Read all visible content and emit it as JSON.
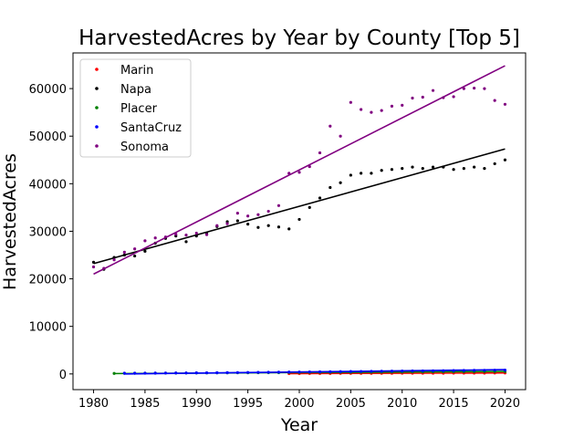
{
  "chart_data": {
    "type": "scatter",
    "title": "HarvestedAcres by Year by County [Top 5]",
    "xlabel": "Year",
    "ylabel": "HarvestedAcres",
    "xlim": [
      1978,
      2022
    ],
    "ylim": [
      -3300,
      67500
    ],
    "x_ticks": [
      "1980",
      "1985",
      "1990",
      "1995",
      "2000",
      "2005",
      "2010",
      "2015",
      "2020"
    ],
    "y_ticks": [
      "0",
      "10000",
      "20000",
      "30000",
      "40000",
      "50000",
      "60000"
    ],
    "legend_position": "upper-left",
    "grid": false,
    "series": [
      {
        "name": "Marin",
        "color": "#ff0000",
        "points": [
          [
            1999,
            80
          ],
          [
            2000,
            90
          ],
          [
            2001,
            100
          ],
          [
            2002,
            110
          ],
          [
            2003,
            110
          ],
          [
            2004,
            120
          ],
          [
            2005,
            120
          ],
          [
            2006,
            130
          ],
          [
            2007,
            130
          ],
          [
            2008,
            140
          ],
          [
            2009,
            140
          ],
          [
            2010,
            150
          ],
          [
            2011,
            150
          ],
          [
            2012,
            150
          ],
          [
            2013,
            160
          ],
          [
            2014,
            160
          ],
          [
            2015,
            170
          ],
          [
            2016,
            170
          ],
          [
            2017,
            180
          ],
          [
            2018,
            180
          ],
          [
            2019,
            190
          ],
          [
            2020,
            190
          ]
        ],
        "trend": [
          [
            1999,
            70
          ],
          [
            2020,
            200
          ]
        ]
      },
      {
        "name": "Napa",
        "color": "#000000",
        "points": [
          [
            1980,
            23500
          ],
          [
            1981,
            22000
          ],
          [
            1982,
            24500
          ],
          [
            1983,
            25000
          ],
          [
            1984,
            24800
          ],
          [
            1985,
            25800
          ],
          [
            1986,
            27500
          ],
          [
            1987,
            28500
          ],
          [
            1988,
            29000
          ],
          [
            1989,
            27800
          ],
          [
            1990,
            29000
          ],
          [
            1991,
            29500
          ],
          [
            1992,
            31000
          ],
          [
            1993,
            32000
          ],
          [
            1994,
            32200
          ],
          [
            1995,
            31500
          ],
          [
            1996,
            30800
          ],
          [
            1997,
            31200
          ],
          [
            1998,
            30900
          ],
          [
            1999,
            30500
          ],
          [
            2000,
            32500
          ],
          [
            2001,
            35000
          ],
          [
            2002,
            37000
          ],
          [
            2003,
            39200
          ],
          [
            2004,
            40200
          ],
          [
            2005,
            41800
          ],
          [
            2006,
            42200
          ],
          [
            2007,
            42200
          ],
          [
            2008,
            42800
          ],
          [
            2009,
            43000
          ],
          [
            2010,
            43200
          ],
          [
            2011,
            43500
          ],
          [
            2012,
            43200
          ],
          [
            2013,
            43500
          ],
          [
            2014,
            43500
          ],
          [
            2015,
            43000
          ],
          [
            2016,
            43200
          ],
          [
            2017,
            43500
          ],
          [
            2018,
            43200
          ],
          [
            2019,
            44200
          ],
          [
            2020,
            45000
          ]
        ],
        "trend": [
          [
            1980,
            23200
          ],
          [
            2020,
            47300
          ]
        ]
      },
      {
        "name": "Placer",
        "color": "#008000",
        "points": [
          [
            1982,
            100
          ],
          [
            1983,
            120
          ],
          [
            1984,
            130
          ],
          [
            1985,
            150
          ],
          [
            1986,
            160
          ],
          [
            1987,
            170
          ],
          [
            1988,
            180
          ],
          [
            1989,
            190
          ],
          [
            1990,
            200
          ],
          [
            1991,
            210
          ],
          [
            1992,
            220
          ],
          [
            1993,
            230
          ],
          [
            1994,
            240
          ],
          [
            1995,
            250
          ],
          [
            1996,
            260
          ],
          [
            1997,
            270
          ],
          [
            1998,
            280
          ],
          [
            1999,
            290
          ],
          [
            2000,
            300
          ],
          [
            2001,
            310
          ],
          [
            2002,
            320
          ],
          [
            2003,
            330
          ],
          [
            2004,
            340
          ],
          [
            2005,
            350
          ],
          [
            2006,
            360
          ],
          [
            2007,
            370
          ],
          [
            2008,
            380
          ],
          [
            2009,
            390
          ],
          [
            2010,
            400
          ],
          [
            2011,
            410
          ],
          [
            2012,
            420
          ],
          [
            2013,
            430
          ],
          [
            2014,
            440
          ],
          [
            2015,
            450
          ],
          [
            2016,
            460
          ],
          [
            2017,
            470
          ],
          [
            2018,
            480
          ],
          [
            2019,
            490
          ],
          [
            2020,
            500
          ]
        ],
        "trend": [
          [
            1982,
            80
          ],
          [
            2020,
            520
          ]
        ]
      },
      {
        "name": "SantaCruz",
        "color": "#0000ff",
        "points": [
          [
            1983,
            150
          ],
          [
            1984,
            160
          ],
          [
            1985,
            170
          ],
          [
            1986,
            180
          ],
          [
            1987,
            190
          ],
          [
            1988,
            200
          ],
          [
            1989,
            210
          ],
          [
            1990,
            220
          ],
          [
            1991,
            240
          ],
          [
            1992,
            250
          ],
          [
            1993,
            270
          ],
          [
            1994,
            290
          ],
          [
            1995,
            310
          ],
          [
            1996,
            330
          ],
          [
            1997,
            350
          ],
          [
            1998,
            370
          ],
          [
            1999,
            390
          ],
          [
            2000,
            410
          ],
          [
            2001,
            430
          ],
          [
            2002,
            450
          ],
          [
            2003,
            470
          ],
          [
            2004,
            490
          ],
          [
            2005,
            510
          ],
          [
            2006,
            530
          ],
          [
            2007,
            550
          ],
          [
            2008,
            570
          ],
          [
            2009,
            590
          ],
          [
            2010,
            610
          ],
          [
            2011,
            630
          ],
          [
            2012,
            650
          ],
          [
            2013,
            670
          ],
          [
            2014,
            690
          ],
          [
            2015,
            710
          ],
          [
            2016,
            730
          ],
          [
            2017,
            750
          ],
          [
            2018,
            770
          ],
          [
            2019,
            790
          ],
          [
            2020,
            800
          ]
        ],
        "trend": [
          [
            1983,
            0
          ],
          [
            2020,
            900
          ]
        ]
      },
      {
        "name": "Sonoma",
        "color": "#800080",
        "points": [
          [
            1980,
            22500
          ],
          [
            1981,
            22200
          ],
          [
            1982,
            24000
          ],
          [
            1983,
            25600
          ],
          [
            1984,
            26300
          ],
          [
            1985,
            28000
          ],
          [
            1986,
            28600
          ],
          [
            1987,
            28800
          ],
          [
            1988,
            29400
          ],
          [
            1989,
            29200
          ],
          [
            1990,
            29600
          ],
          [
            1991,
            29300
          ],
          [
            1992,
            31200
          ],
          [
            1993,
            31600
          ],
          [
            1994,
            33800
          ],
          [
            1995,
            33200
          ],
          [
            1996,
            33500
          ],
          [
            1997,
            34200
          ],
          [
            1998,
            35400
          ],
          [
            1999,
            42200
          ],
          [
            2000,
            42400
          ],
          [
            2001,
            43600
          ],
          [
            2002,
            46500
          ],
          [
            2003,
            52100
          ],
          [
            2004,
            50000
          ],
          [
            2005,
            57100
          ],
          [
            2006,
            55600
          ],
          [
            2007,
            55000
          ],
          [
            2008,
            55400
          ],
          [
            2009,
            56300
          ],
          [
            2010,
            56500
          ],
          [
            2011,
            58000
          ],
          [
            2012,
            58200
          ],
          [
            2013,
            59600
          ],
          [
            2014,
            58100
          ],
          [
            2015,
            58300
          ],
          [
            2016,
            60000
          ],
          [
            2017,
            60100
          ],
          [
            2018,
            60000
          ],
          [
            2019,
            57500
          ],
          [
            2020,
            56700
          ]
        ],
        "trend": [
          [
            1980,
            21000
          ],
          [
            2020,
            64800
          ]
        ]
      }
    ]
  }
}
